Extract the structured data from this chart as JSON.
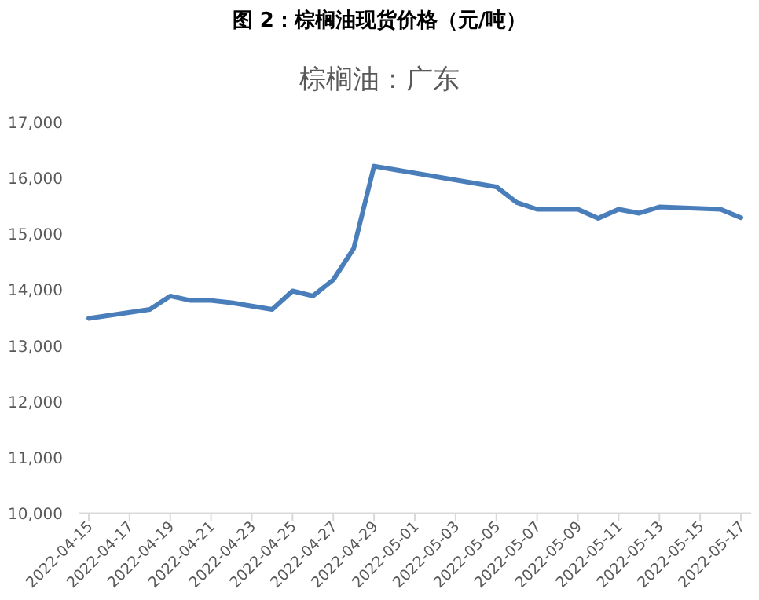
{
  "chart_data": {
    "type": "line",
    "title": "图 2：棕榈油现货价格（元/吨）",
    "subtitle": "棕榈油：广东",
    "x": [
      "2022-04-15",
      "2022-04-18",
      "2022-04-19",
      "2022-04-20",
      "2022-04-21",
      "2022-04-22",
      "2022-04-24",
      "2022-04-25",
      "2022-04-26",
      "2022-04-27",
      "2022-04-28",
      "2022-04-29",
      "2022-05-05",
      "2022-05-06",
      "2022-05-07",
      "2022-05-09",
      "2022-05-10",
      "2022-05-11",
      "2022-05-12",
      "2022-05-13",
      "2022-05-16",
      "2022-05-17"
    ],
    "series": [
      {
        "color": "#4a7ebb",
        "values": [
          13480,
          13640,
          13880,
          13800,
          13800,
          13760,
          13640,
          13970,
          13880,
          14170,
          14730,
          16200,
          15830,
          15550,
          15430,
          15430,
          15270,
          15430,
          15360,
          15470,
          15430,
          15280
        ]
      }
    ],
    "xlim": [
      "2022-04-14T12:00",
      "2022-05-17T12:00"
    ],
    "xticks": [
      "2022-04-15",
      "2022-04-17",
      "2022-04-19",
      "2022-04-21",
      "2022-04-23",
      "2022-04-25",
      "2022-04-27",
      "2022-04-29",
      "2022-05-01",
      "2022-05-03",
      "2022-05-05",
      "2022-05-07",
      "2022-05-09",
      "2022-05-11",
      "2022-05-13",
      "2022-05-15",
      "2022-05-17"
    ],
    "ylim": [
      10000,
      17000
    ],
    "yticks": [
      {
        "value": 10000,
        "label": "10,000"
      },
      {
        "value": 11000,
        "label": "11,000"
      },
      {
        "value": 12000,
        "label": "12,000"
      },
      {
        "value": 13000,
        "label": "13,000"
      },
      {
        "value": 14000,
        "label": "14,000"
      },
      {
        "value": 15000,
        "label": "15,000"
      },
      {
        "value": 16000,
        "label": "16,000"
      },
      {
        "value": 17000,
        "label": "17,000"
      }
    ],
    "grid": false,
    "marker": "none",
    "line_style": "solid"
  }
}
